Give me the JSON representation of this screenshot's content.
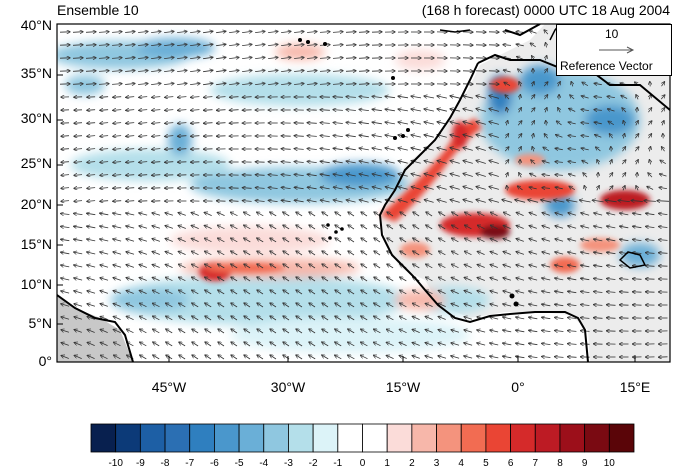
{
  "title_left": "Ensemble 10",
  "title_right": "(168 h forecast) 0000 UTC 18 Aug 2004",
  "latitudes": [
    "40°N",
    "35°N",
    "30°N",
    "25°N",
    "20°N",
    "15°N",
    "10°N",
    "5°N",
    "0°"
  ],
  "longitudes": [
    "45°W",
    "30°W",
    "15°W",
    "0°",
    "15°E"
  ],
  "reference_vector": {
    "magnitude": "10",
    "label": "Reference Vector"
  },
  "colorbar": {
    "labels": [
      "-10",
      "-9",
      "-8",
      "-7",
      "-6",
      "-5",
      "-4",
      "-3",
      "-2",
      "-1",
      "0",
      "1",
      "2",
      "3",
      "4",
      "5",
      "6",
      "7",
      "8",
      "9",
      "10"
    ],
    "colors": [
      "#08204f",
      "#0c3a78",
      "#1d5fa5",
      "#2b6fb3",
      "#2f7fbf",
      "#4a97cc",
      "#6aafd7",
      "#8fc7e0",
      "#b4dfea",
      "#dcf3f8",
      "#ffffff",
      "#ffffff",
      "#fbdcd9",
      "#f7b7aa",
      "#f4937d",
      "#f26c52",
      "#ea4534",
      "#d52a2a",
      "#bd1b24",
      "#9c0f1a",
      "#7a0a12",
      "#5a0508"
    ]
  },
  "map": {
    "lon_range": [
      -58,
      20
    ],
    "lat_range": [
      0,
      40
    ],
    "land_color": "#c8c8c8",
    "coastline_color": "#000000"
  }
}
